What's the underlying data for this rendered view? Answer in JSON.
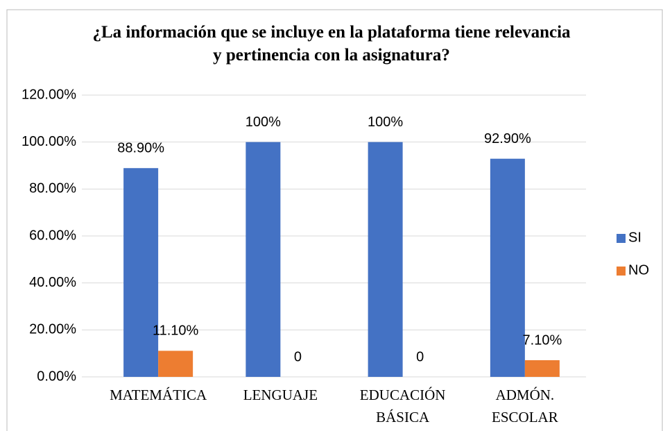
{
  "chart_data": {
    "type": "bar",
    "title": "¿La información que se incluye en la plataforma tiene relevancia y pertinencia con la asignatura?",
    "categories": [
      "MATEMÁTICA",
      "LENGUAJE",
      "EDUCACIÓN BÁSICA",
      "ADMÓN. ESCOLAR"
    ],
    "series": [
      {
        "name": "SI",
        "color": "#4472c4",
        "values": [
          88.9,
          100,
          100,
          92.9
        ],
        "value_labels": [
          "88.90%",
          "100%",
          "100%",
          "92.90%"
        ]
      },
      {
        "name": "NO",
        "color": "#ed7d31",
        "values": [
          11.1,
          0,
          0,
          7.1
        ],
        "value_labels": [
          "11.10%",
          "0",
          "0",
          "7.10%"
        ]
      }
    ],
    "ylim": [
      0,
      120
    ],
    "yticks": [
      {
        "value": 0,
        "label": "0.00%"
      },
      {
        "value": 20,
        "label": "20.00%"
      },
      {
        "value": 40,
        "label": "40.00%"
      },
      {
        "value": 60,
        "label": "60.00%"
      },
      {
        "value": 80,
        "label": "80.00%"
      },
      {
        "value": 100,
        "label": "100.00%"
      },
      {
        "value": 120,
        "label": "120.00%"
      }
    ],
    "grid": true,
    "legend": "right"
  }
}
